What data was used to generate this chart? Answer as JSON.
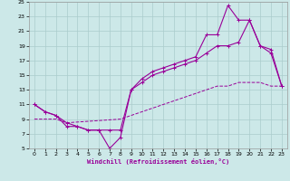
{
  "xlabel": "Windchill (Refroidissement éolien,°C)",
  "bg_color": "#cce8e8",
  "grid_color": "#aacccc",
  "line_color": "#990099",
  "xlim": [
    -0.5,
    23.5
  ],
  "ylim": [
    5,
    25
  ],
  "xticks": [
    0,
    1,
    2,
    3,
    4,
    5,
    6,
    7,
    8,
    9,
    10,
    11,
    12,
    13,
    14,
    15,
    16,
    17,
    18,
    19,
    20,
    21,
    22,
    23
  ],
  "yticks": [
    5,
    7,
    9,
    11,
    13,
    15,
    17,
    19,
    21,
    23,
    25
  ],
  "line1_x": [
    0,
    1,
    2,
    3,
    4,
    5,
    6,
    7,
    8,
    9,
    10,
    11,
    12,
    13,
    14,
    15,
    16,
    17,
    18,
    19,
    20,
    21,
    22,
    23
  ],
  "line1_y": [
    11,
    10,
    9.5,
    8,
    8,
    7.5,
    7.5,
    7.5,
    7.5,
    13,
    14,
    15,
    15.5,
    16,
    16.5,
    17,
    18,
    19,
    19,
    19.5,
    22.5,
    19,
    18,
    13.5
  ],
  "line2_x": [
    0,
    1,
    2,
    3,
    4,
    5,
    6,
    7,
    8,
    9,
    10,
    11,
    12,
    13,
    14,
    15,
    16,
    17,
    18,
    19,
    20,
    21,
    22,
    23
  ],
  "line2_y": [
    11,
    10,
    9.5,
    8.5,
    8,
    7.5,
    7.5,
    5,
    6.5,
    13,
    14.5,
    15.5,
    16,
    16.5,
    17,
    17.5,
    20.5,
    20.5,
    24.5,
    22.5,
    22.5,
    19,
    18.5,
    13.5
  ],
  "line3_x": [
    0,
    1,
    2,
    3,
    8,
    10,
    11,
    12,
    13,
    14,
    15,
    16,
    17,
    18,
    19,
    20,
    21,
    22,
    23
  ],
  "line3_y": [
    9,
    9,
    9,
    8.5,
    9,
    10,
    10.5,
    11,
    11.5,
    12,
    12.5,
    13,
    13.5,
    13.5,
    14,
    14,
    14,
    13.5,
    13.5
  ]
}
